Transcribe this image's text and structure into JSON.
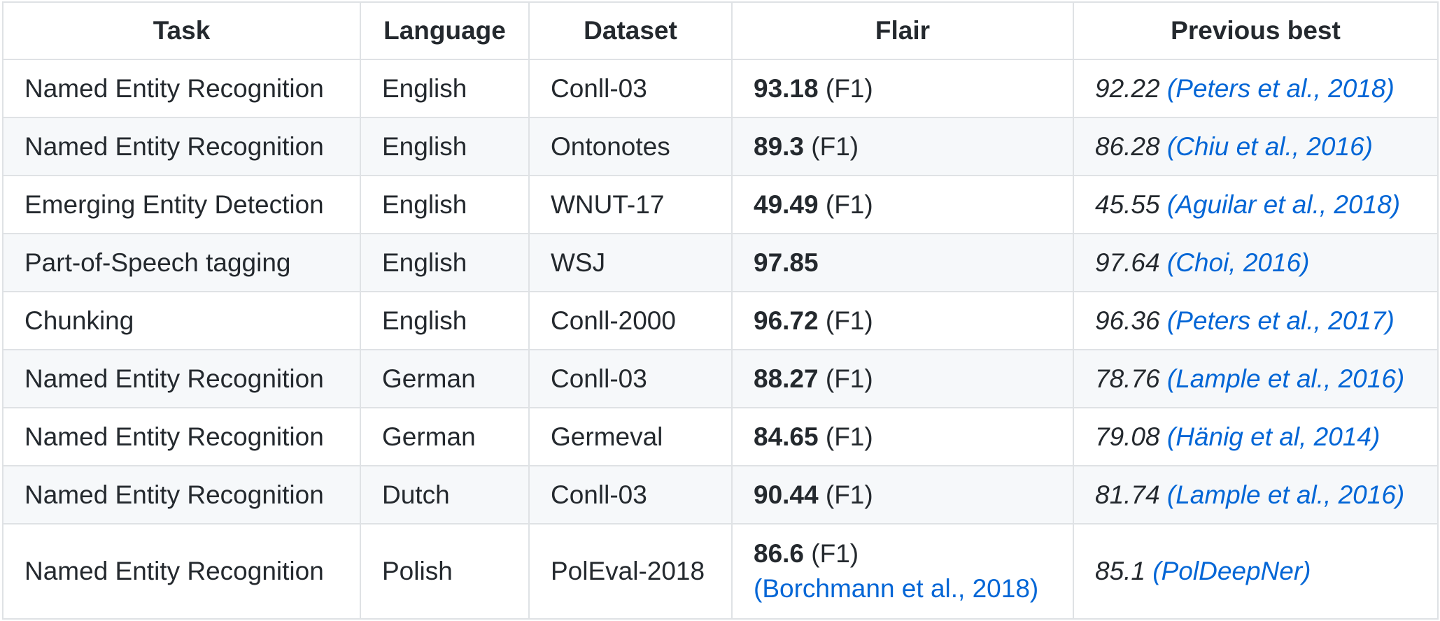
{
  "table": {
    "headers": {
      "task": "Task",
      "language": "Language",
      "dataset": "Dataset",
      "flair": "Flair",
      "previous_best": "Previous best"
    },
    "rows": [
      {
        "task": "Named Entity Recognition",
        "language": "English",
        "dataset": "Conll-03",
        "flair_score": "93.18",
        "flair_metric": "(F1)",
        "prev_value": "92.22",
        "prev_ref": "(Peters et al., 2018)"
      },
      {
        "task": "Named Entity Recognition",
        "language": "English",
        "dataset": "Ontonotes",
        "flair_score": "89.3",
        "flair_metric": "(F1)",
        "prev_value": "86.28",
        "prev_ref": "(Chiu et al., 2016)"
      },
      {
        "task": "Emerging Entity Detection",
        "language": "English",
        "dataset": "WNUT-17",
        "flair_score": "49.49",
        "flair_metric": "(F1)",
        "prev_value": "45.55",
        "prev_ref": "(Aguilar et al., 2018)"
      },
      {
        "task": "Part-of-Speech tagging",
        "language": "English",
        "dataset": "WSJ",
        "flair_score": "97.85",
        "flair_metric": "",
        "prev_value": "97.64",
        "prev_ref": "(Choi, 2016)"
      },
      {
        "task": "Chunking",
        "language": "English",
        "dataset": "Conll-2000",
        "flair_score": "96.72",
        "flair_metric": "(F1)",
        "prev_value": "96.36",
        "prev_ref": "(Peters et al., 2017)"
      },
      {
        "task": "Named Entity Recognition",
        "language": "German",
        "dataset": "Conll-03",
        "flair_score": "88.27",
        "flair_metric": "(F1)",
        "prev_value": "78.76",
        "prev_ref": "(Lample et al., 2016)"
      },
      {
        "task": "Named Entity Recognition",
        "language": "German",
        "dataset": "Germeval",
        "flair_score": "84.65",
        "flair_metric": "(F1)",
        "prev_value": "79.08",
        "prev_ref": "(Hänig et al, 2014)"
      },
      {
        "task": "Named Entity Recognition",
        "language": "Dutch",
        "dataset": "Conll-03",
        "flair_score": "90.44",
        "flair_metric": "(F1)",
        "prev_value": "81.74",
        "prev_ref": "(Lample et al., 2016)"
      },
      {
        "task": "Named Entity Recognition",
        "language": "Polish",
        "dataset": "PolEval-2018",
        "flair_score": "86.6",
        "flair_metric": "(F1)",
        "flair_ref": "(Borchmann et al., 2018)",
        "prev_value": "85.1",
        "prev_ref": "(PolDeepNer)"
      }
    ]
  },
  "colors": {
    "text": "#24292e",
    "link": "#0366d6",
    "border": "#dfe2e5",
    "row_stripe": "#f6f8fa"
  }
}
